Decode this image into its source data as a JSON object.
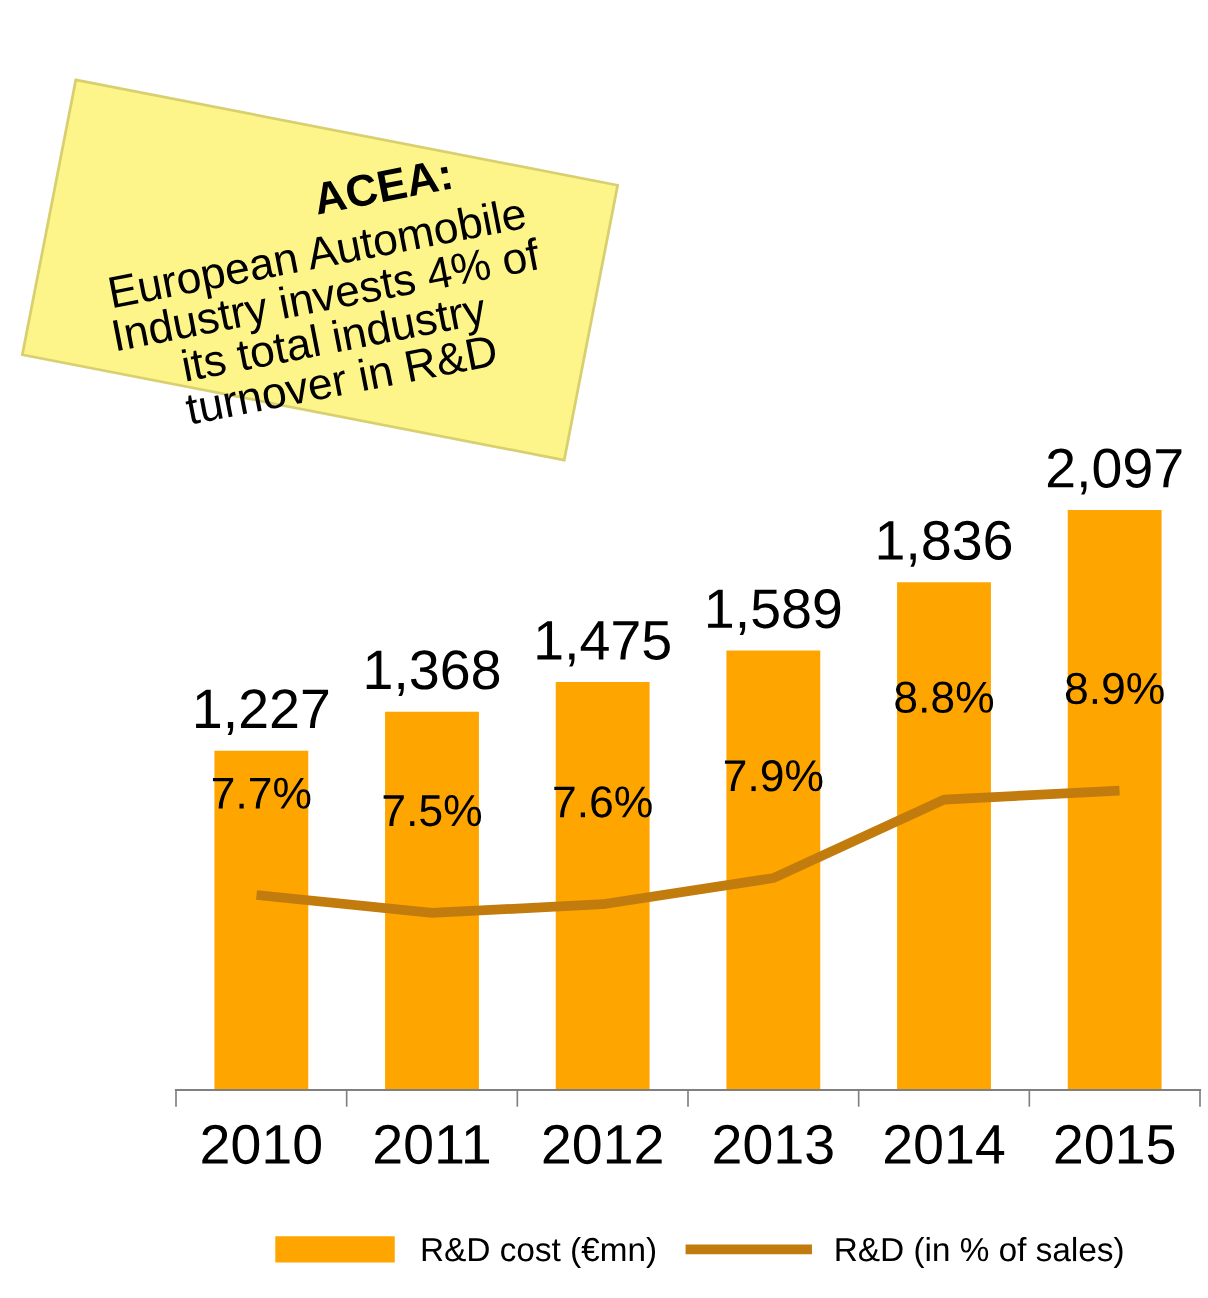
{
  "chart_data": {
    "type": "bar",
    "categories": [
      "2010",
      "2011",
      "2012",
      "2013",
      "2014",
      "2015"
    ],
    "series": [
      {
        "name": "R&D cost (€mn)",
        "color": "#ffa500",
        "values": [
          1227,
          1368,
          1475,
          1589,
          1836,
          2097
        ],
        "value_labels": [
          "1,227",
          "1,368",
          "1,475",
          "1,589",
          "1,836",
          "2,097"
        ]
      },
      {
        "name": "R&D (in % of sales)",
        "type": "line",
        "axis": "y2",
        "color": "#c27c0e",
        "values": [
          7.7,
          7.5,
          7.6,
          7.9,
          8.8,
          8.9
        ],
        "value_labels": [
          "7.7%",
          "7.5%",
          "7.6%",
          "7.9%",
          "8.8%",
          "8.9%"
        ]
      }
    ],
    "tick_labels": "x",
    "legend": "bottom",
    "marker": "none",
    "line_style": "solid",
    "grid": false,
    "annotations": [
      "ACEA:",
      "European Automobile\nIndustry invests 4% of\nits total industry\nturnover in R&D"
    ]
  }
}
